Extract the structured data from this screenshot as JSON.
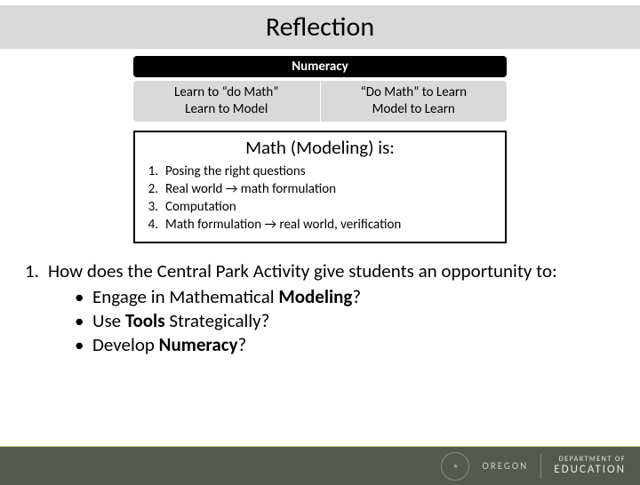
{
  "title": "Reflection",
  "numeracy_label": "Numeracy",
  "colors": {
    "title_bar_bg": "#d9d9d9",
    "numeracy_bg": "#000000",
    "numeracy_fg": "#ffffff",
    "two_col_bg": "#d9d9d9",
    "box_border": "#000000",
    "footer_bg": "#555a50",
    "footer_accent": "#d0c97e"
  },
  "left_col": {
    "line1": "Learn to “do Math”",
    "line2": "Learn to Model"
  },
  "right_col": {
    "line1": "“Do Math” to Learn",
    "line2": "Model to Learn"
  },
  "modeling": {
    "heading": "Math (Modeling) is:",
    "items": [
      "Posing the right questions",
      "Real world → math formulation",
      "Computation",
      "Math formulation → real world, verification"
    ]
  },
  "question": {
    "number": "1.",
    "stem": "How does the Central Park Activity give students an opportunity to:",
    "bullets_html": [
      "Engage in Mathematical <b>Modeling</b>?",
      "Use <b>Tools</b> Strategically?",
      "Develop <b>Numeracy</b>?"
    ]
  },
  "footer": {
    "state": "OREGON",
    "dept_line1": "DEPARTMENT OF",
    "dept_line2": "EDUCATION"
  }
}
